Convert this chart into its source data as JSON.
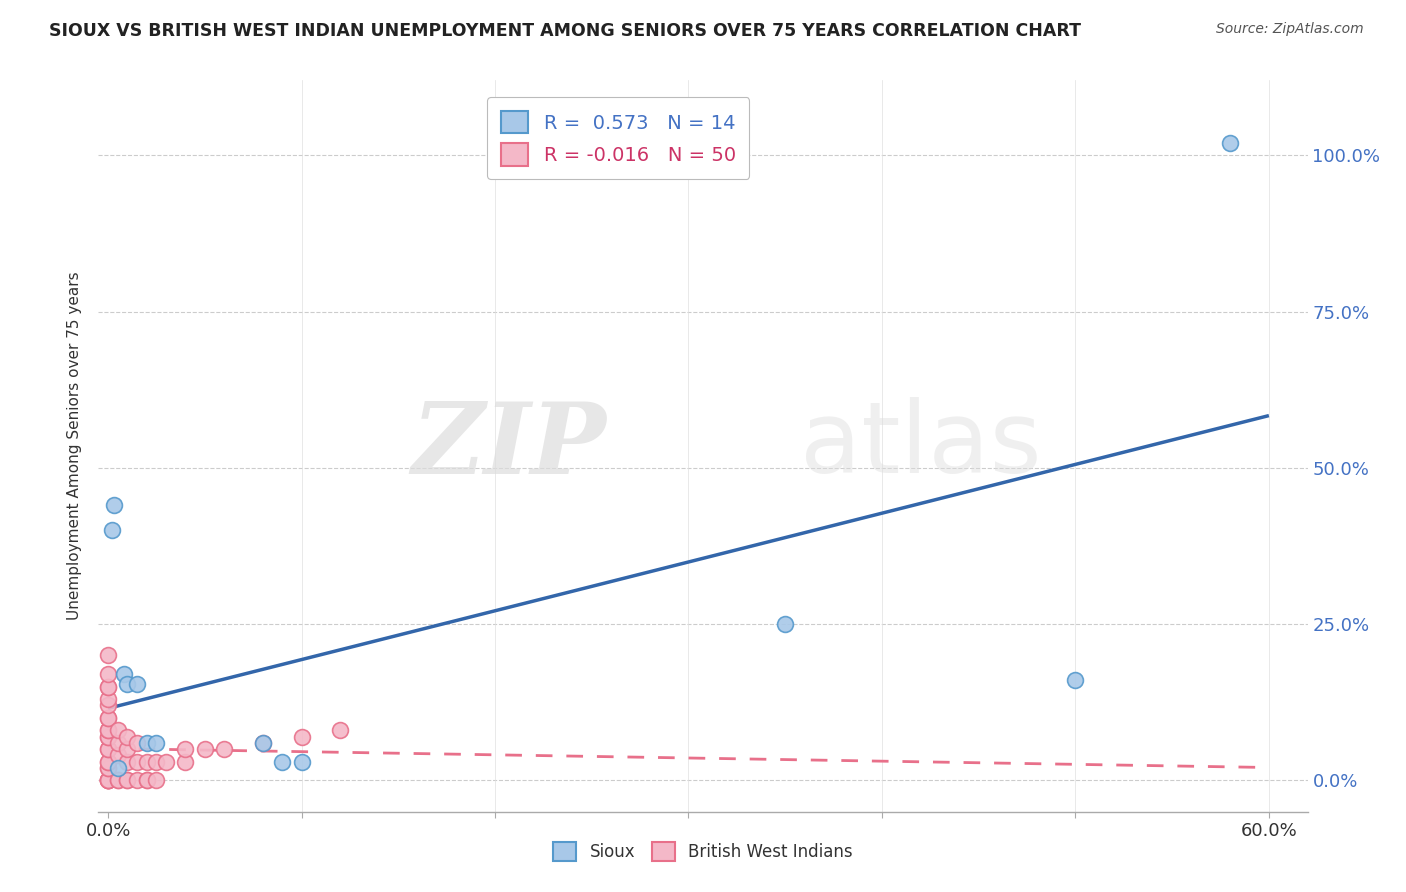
{
  "title": "SIOUX VS BRITISH WEST INDIAN UNEMPLOYMENT AMONG SENIORS OVER 75 YEARS CORRELATION CHART",
  "source": "Source: ZipAtlas.com",
  "ylabel": "Unemployment Among Seniors over 75 years",
  "xlim": [
    -0.005,
    0.62
  ],
  "ylim": [
    -0.05,
    1.12
  ],
  "xtick_positions": [
    0.0,
    0.1,
    0.2,
    0.3,
    0.4,
    0.5,
    0.6
  ],
  "xticklabels": [
    "0.0%",
    "",
    "",
    "",
    "",
    "",
    "60.0%"
  ],
  "ytick_positions": [
    0.0,
    0.25,
    0.5,
    0.75,
    1.0
  ],
  "ytick_labels": [
    "0.0%",
    "25.0%",
    "50.0%",
    "75.0%",
    "100.0%"
  ],
  "watermark_zip": "ZIP",
  "watermark_atlas": "atlas",
  "sioux_color": "#a8c8e8",
  "bwi_color": "#f4b8c8",
  "sioux_edge": "#5599cc",
  "bwi_edge": "#e8708a",
  "trend_sioux_color": "#3366aa",
  "trend_bwi_color": "#e8708a",
  "legend_R_sioux": "0.573",
  "legend_R_bwi": "-0.016",
  "legend_N_sioux": "14",
  "legend_N_bwi": "50",
  "sioux_x": [
    0.002,
    0.003,
    0.005,
    0.008,
    0.01,
    0.015,
    0.02,
    0.025,
    0.08,
    0.1,
    0.35,
    0.5,
    0.58,
    0.09
  ],
  "sioux_y": [
    0.4,
    0.44,
    0.02,
    0.17,
    0.155,
    0.155,
    0.06,
    0.06,
    0.06,
    0.03,
    0.25,
    0.16,
    1.02,
    0.03
  ],
  "bwi_x": [
    0.0,
    0.0,
    0.0,
    0.0,
    0.0,
    0.0,
    0.0,
    0.0,
    0.0,
    0.0,
    0.0,
    0.0,
    0.0,
    0.0,
    0.0,
    0.0,
    0.0,
    0.0,
    0.0,
    0.0,
    0.0,
    0.0,
    0.0,
    0.0,
    0.005,
    0.005,
    0.005,
    0.005,
    0.005,
    0.01,
    0.01,
    0.01,
    0.01,
    0.01,
    0.015,
    0.015,
    0.015,
    0.02,
    0.02,
    0.02,
    0.025,
    0.025,
    0.03,
    0.04,
    0.04,
    0.05,
    0.06,
    0.08,
    0.1,
    0.12
  ],
  "bwi_y": [
    0.0,
    0.0,
    0.0,
    0.0,
    0.0,
    0.0,
    0.02,
    0.02,
    0.03,
    0.03,
    0.05,
    0.05,
    0.07,
    0.07,
    0.08,
    0.08,
    0.1,
    0.1,
    0.12,
    0.13,
    0.15,
    0.15,
    0.17,
    0.2,
    0.0,
    0.0,
    0.04,
    0.06,
    0.08,
    0.0,
    0.0,
    0.03,
    0.05,
    0.07,
    0.0,
    0.03,
    0.06,
    0.0,
    0.0,
    0.03,
    0.0,
    0.03,
    0.03,
    0.03,
    0.05,
    0.05,
    0.05,
    0.06,
    0.07,
    0.08
  ],
  "background_color": "#ffffff",
  "grid_color": "#cccccc",
  "fig_width": 14.06,
  "fig_height": 8.92
}
